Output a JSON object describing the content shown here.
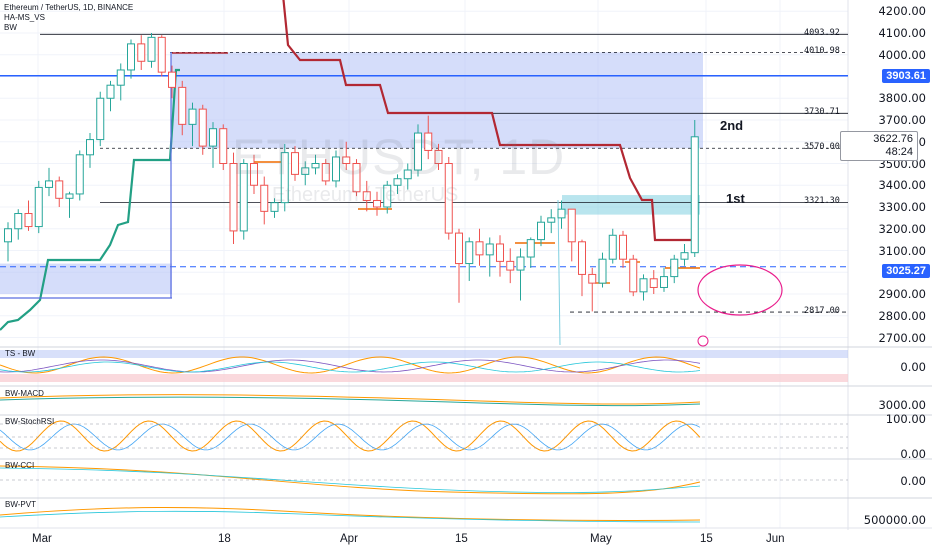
{
  "header": {
    "line1": "Ethereum / TetherUS, 1D, BINANCE",
    "line2": "HA-MS_VS",
    "line3": "BW"
  },
  "watermark": {
    "symbol": "ETHUSDT, 1D",
    "name": "Ethereum / TetherUS"
  },
  "price_axis": {
    "ticks": [
      "4200.00",
      "4100.00",
      "4000.00",
      "3800.00",
      "3700.00",
      "3600.00",
      "3500.00",
      "3400.00",
      "3300.00",
      "3200.00",
      "3100.00",
      "2900.00",
      "2800.00",
      "2700.00"
    ],
    "tick_values": [
      4200,
      4100,
      4000,
      3800,
      3700,
      3600,
      3500,
      3400,
      3300,
      3200,
      3100,
      2900,
      2800,
      2700
    ],
    "last_price": "3622.76",
    "countdown": "48:24",
    "badge_blue_1": "3903.61",
    "badge_blue_2": "3025.27"
  },
  "levels": [
    {
      "label": "4093.92",
      "value": 4093.92
    },
    {
      "label": "4010.98",
      "value": 4010.98
    },
    {
      "label": "3730.71",
      "value": 3730.71
    },
    {
      "label": "3570.00",
      "value": 3570.0
    },
    {
      "label": "3321.30",
      "value": 3321.3
    },
    {
      "label": "2817.00",
      "value": 2817.0
    }
  ],
  "annotations": {
    "first": "1st",
    "second": "2nd"
  },
  "time_axis": [
    "Mar",
    "18",
    "Apr",
    "15",
    "May",
    "15",
    "Jun"
  ],
  "panes": [
    {
      "title": "TS - BW",
      "tick": "0.00"
    },
    {
      "title": "BW-MACD",
      "tick": "3000.00"
    },
    {
      "title": "BW-StochRSI",
      "tick": "100.00",
      "tick2": "0.00"
    },
    {
      "title": "BW-CCI",
      "tick": "0.00"
    },
    {
      "title": "BW-PVT",
      "tick": "500000.00"
    }
  ],
  "colors": {
    "up": "#26a69a",
    "down": "#ef5350",
    "blue": "#2962ff",
    "zone": "#b2c1f5",
    "red_line": "#b22833",
    "teal_line": "#22a085",
    "magenta": "#e91e8c",
    "orange": "#ff9800"
  },
  "chart_data": {
    "type": "candlestick",
    "ohlc": [
      [
        3140,
        3230,
        3050,
        3200
      ],
      [
        3200,
        3290,
        3150,
        3270
      ],
      [
        3270,
        3330,
        3190,
        3210
      ],
      [
        3210,
        3420,
        3180,
        3390
      ],
      [
        3390,
        3480,
        3350,
        3420
      ],
      [
        3420,
        3440,
        3300,
        3340
      ],
      [
        3340,
        3370,
        3250,
        3360
      ],
      [
        3360,
        3560,
        3330,
        3540
      ],
      [
        3540,
        3640,
        3480,
        3610
      ],
      [
        3610,
        3830,
        3580,
        3800
      ],
      [
        3800,
        3880,
        3740,
        3860
      ],
      [
        3860,
        3960,
        3790,
        3930
      ],
      [
        3930,
        4070,
        3890,
        4050
      ],
      [
        4050,
        4090,
        3930,
        3970
      ],
      [
        3970,
        4100,
        3940,
        4080
      ],
      [
        4080,
        4090,
        3900,
        3920
      ],
      [
        3920,
        3950,
        3800,
        3850
      ],
      [
        3850,
        3880,
        3630,
        3680
      ],
      [
        3680,
        3780,
        3580,
        3750
      ],
      [
        3750,
        3770,
        3540,
        3580
      ],
      [
        3580,
        3690,
        3480,
        3660
      ],
      [
        3660,
        3680,
        3470,
        3500
      ],
      [
        3500,
        3550,
        3130,
        3190
      ],
      [
        3190,
        3520,
        3150,
        3500
      ],
      [
        3500,
        3540,
        3360,
        3400
      ],
      [
        3400,
        3440,
        3220,
        3280
      ],
      [
        3280,
        3340,
        3250,
        3320
      ],
      [
        3320,
        3590,
        3280,
        3550
      ],
      [
        3550,
        3580,
        3420,
        3450
      ],
      [
        3450,
        3510,
        3400,
        3480
      ],
      [
        3480,
        3540,
        3450,
        3500
      ],
      [
        3500,
        3520,
        3400,
        3420
      ],
      [
        3420,
        3560,
        3390,
        3530
      ],
      [
        3530,
        3600,
        3470,
        3500
      ],
      [
        3500,
        3520,
        3350,
        3370
      ],
      [
        3370,
        3420,
        3280,
        3330
      ],
      [
        3330,
        3370,
        3260,
        3300
      ],
      [
        3300,
        3420,
        3270,
        3400
      ],
      [
        3400,
        3450,
        3360,
        3430
      ],
      [
        3430,
        3500,
        3380,
        3470
      ],
      [
        3470,
        3680,
        3440,
        3640
      ],
      [
        3640,
        3720,
        3520,
        3560
      ],
      [
        3560,
        3590,
        3470,
        3500
      ],
      [
        3500,
        3530,
        3150,
        3180
      ],
      [
        3180,
        3200,
        2860,
        3040
      ],
      [
        3040,
        3160,
        2960,
        3140
      ],
      [
        3140,
        3200,
        3030,
        3080
      ],
      [
        3080,
        3160,
        2980,
        3130
      ],
      [
        3130,
        3170,
        2980,
        3050
      ],
      [
        3050,
        3110,
        2950,
        3010
      ],
      [
        3010,
        3110,
        2870,
        3070
      ],
      [
        3070,
        3160,
        3020,
        3150
      ],
      [
        3150,
        3260,
        3120,
        3230
      ],
      [
        3230,
        3290,
        3180,
        3250
      ],
      [
        3250,
        3330,
        3200,
        3290
      ],
      [
        3290,
        3290,
        3050,
        3140
      ],
      [
        3140,
        3150,
        2890,
        2990
      ],
      [
        2990,
        3020,
        2820,
        2950
      ],
      [
        2950,
        3090,
        2930,
        3060
      ],
      [
        3060,
        3200,
        3040,
        3170
      ],
      [
        3170,
        3190,
        3020,
        3060
      ],
      [
        3060,
        3080,
        2890,
        2910
      ],
      [
        2910,
        2990,
        2870,
        2970
      ],
      [
        2970,
        3010,
        2900,
        2930
      ],
      [
        2930,
        3020,
        2910,
        2980
      ],
      [
        2980,
        3080,
        2950,
        3060
      ],
      [
        3060,
        3130,
        3030,
        3090
      ],
      [
        3090,
        3700,
        3070,
        3622.76
      ]
    ]
  }
}
